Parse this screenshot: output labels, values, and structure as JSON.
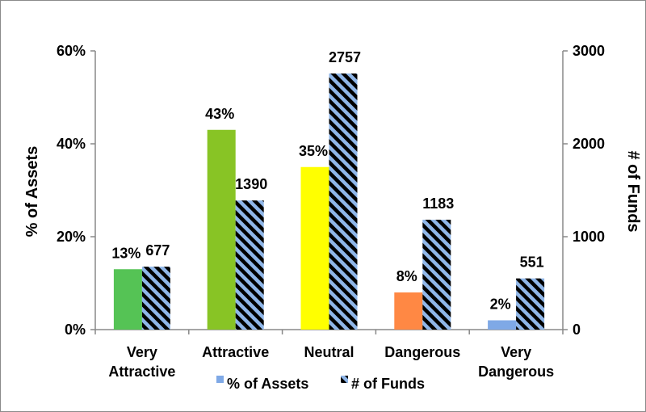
{
  "chart_data": {
    "type": "bar",
    "title": "",
    "categories": [
      [
        "Very",
        "Attractive"
      ],
      [
        "Attractive"
      ],
      [
        "Neutral"
      ],
      [
        "Dangerous"
      ],
      [
        "Very",
        "Dangerous"
      ]
    ],
    "series": [
      {
        "name": "% of Assets",
        "axis": "left",
        "values": [
          13,
          43,
          35,
          8,
          2
        ],
        "labels": [
          "13%",
          "43%",
          "35%",
          "8%",
          "2%"
        ],
        "colors": [
          "#55c355",
          "#88c425",
          "#ffff00",
          "#ff8844",
          "#7fa9e6"
        ]
      },
      {
        "name": "# of Funds",
        "axis": "right",
        "values": [
          677,
          1390,
          2757,
          1183,
          551
        ],
        "labels": [
          "677",
          "1390",
          "2757",
          "1183",
          "551"
        ],
        "pattern": "diagonal-stripes",
        "colors": [
          "#000000",
          "#8fb6e8"
        ]
      }
    ],
    "y_left": {
      "label": "% of Assets",
      "ylim": [
        0,
        60
      ],
      "ticks": [
        0,
        20,
        40,
        60
      ],
      "tick_labels": [
        "0%",
        "20%",
        "40%",
        "60%"
      ]
    },
    "y_right": {
      "label": "# of Funds",
      "ylim": [
        0,
        3000
      ],
      "ticks": [
        0,
        1000,
        2000,
        3000
      ],
      "tick_labels": [
        "0",
        "1000",
        "2000",
        "3000"
      ]
    },
    "legend": {
      "placement": "bottom",
      "items": [
        "% of Assets",
        "# of Funds"
      ]
    },
    "grid": false
  }
}
